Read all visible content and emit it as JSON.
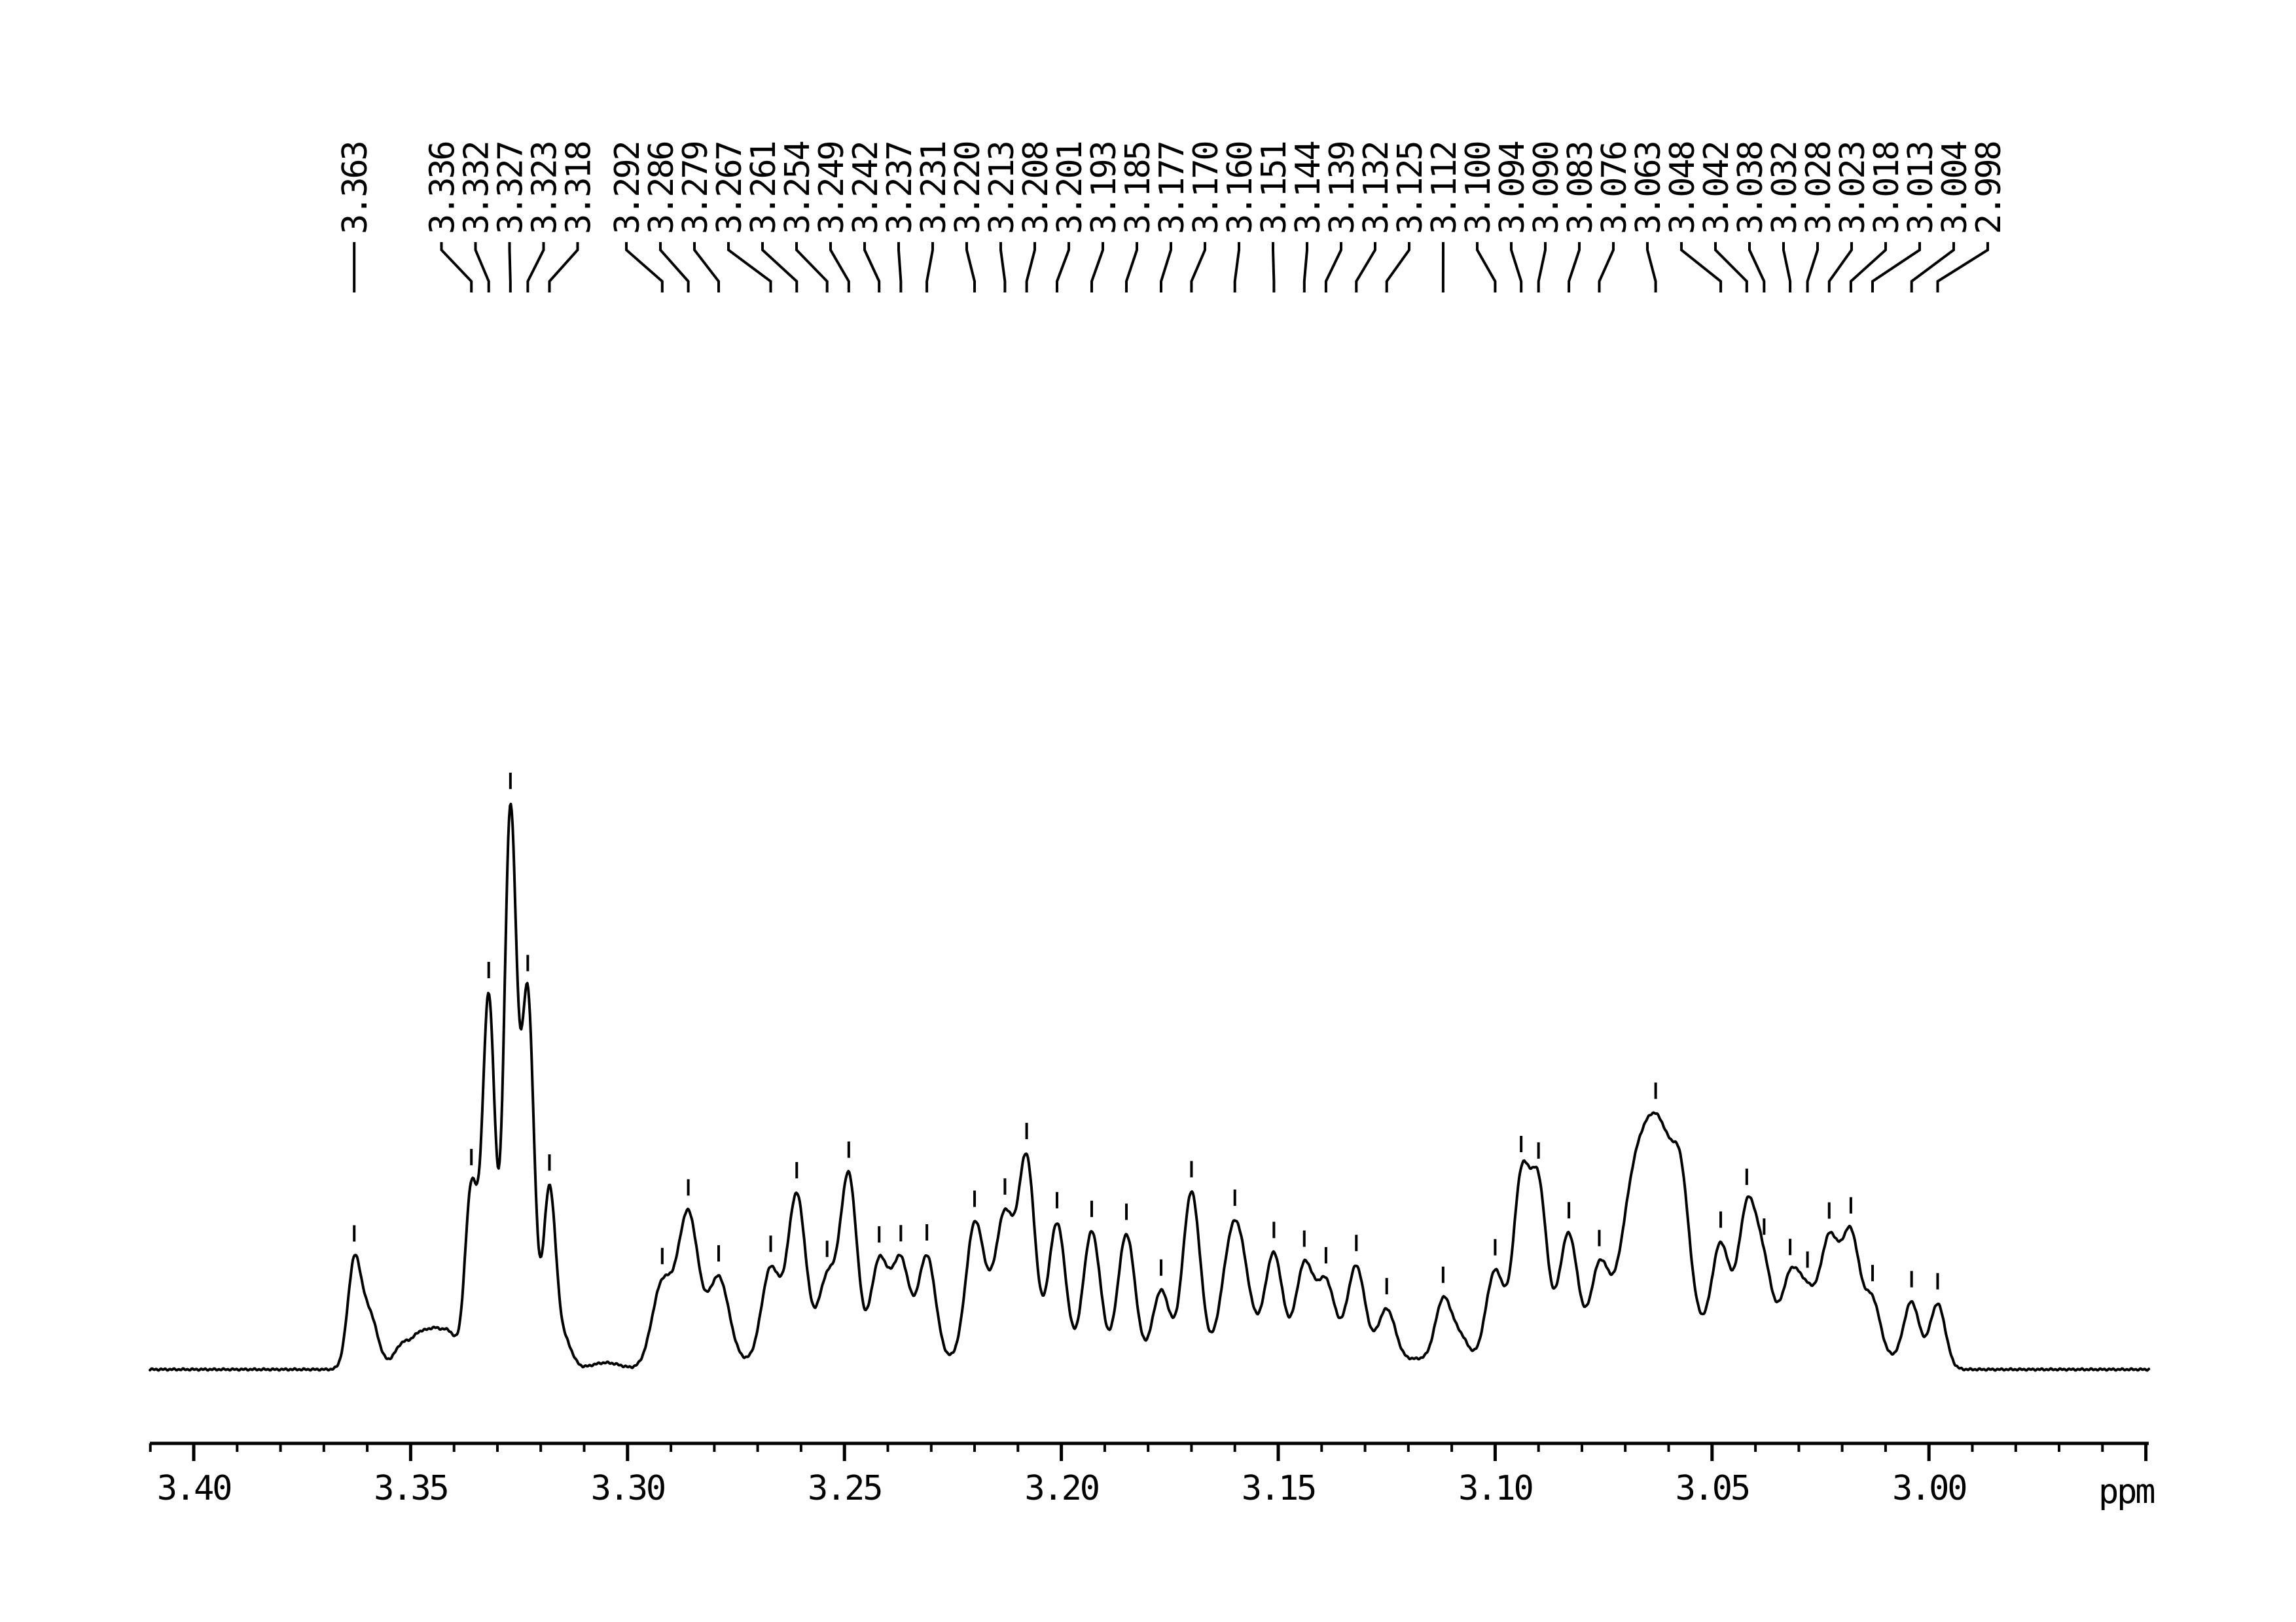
{
  "window": {
    "background_color": "#ffffff",
    "trace_color": "#000000"
  },
  "chart_data": {
    "type": "line",
    "xlabel": "ppm",
    "x_axis": {
      "unit_label": "ppm",
      "major_tick_labels": [
        "3.40",
        "3.35",
        "3.30",
        "3.25",
        "3.20",
        "3.15",
        "3.10",
        "3.05",
        "3.00"
      ],
      "major_tick_values": [
        3.4,
        3.35,
        3.3,
        3.25,
        3.2,
        3.15,
        3.1,
        3.05,
        3.0
      ],
      "minor_tick_step_ppm": 0.01,
      "range_ppm": [
        3.41,
        2.949
      ],
      "direction": "decreasing-to-right",
      "grid": false
    },
    "peak_labels": [
      "3.363",
      "3.336",
      "3.332",
      "3.327",
      "3.323",
      "3.318",
      "3.292",
      "3.286",
      "3.279",
      "3.267",
      "3.261",
      "3.254",
      "3.249",
      "3.242",
      "3.237",
      "3.231",
      "3.220",
      "3.213",
      "3.208",
      "3.201",
      "3.193",
      "3.185",
      "3.177",
      "3.170",
      "3.160",
      "3.151",
      "3.144",
      "3.139",
      "3.132",
      "3.125",
      "3.112",
      "3.100",
      "3.094",
      "3.090",
      "3.083",
      "3.076",
      "3.063",
      "3.048",
      "3.042",
      "3.038",
      "3.032",
      "3.028",
      "3.023",
      "3.018",
      "3.013",
      "3.004",
      "2.998"
    ],
    "series": [
      {
        "name": "nmr-trace",
        "model": "gaussian-sum",
        "max_relative_height": 1.0,
        "labeled_peaks": [
          {
            "label": "3.363",
            "ppm": 3.363,
            "height": 0.185,
            "hwhm_ppm": 0.0018
          },
          {
            "label": "3.336",
            "ppm": 3.336,
            "height": 0.32,
            "hwhm_ppm": 0.0017
          },
          {
            "label": "3.332",
            "ppm": 3.332,
            "height": 0.66,
            "hwhm_ppm": 0.0017
          },
          {
            "label": "3.327",
            "ppm": 3.327,
            "height": 0.99,
            "hwhm_ppm": 0.0017
          },
          {
            "label": "3.323",
            "ppm": 3.323,
            "height": 0.66,
            "hwhm_ppm": 0.0017
          },
          {
            "label": "3.318",
            "ppm": 3.318,
            "height": 0.32,
            "hwhm_ppm": 0.0017
          },
          {
            "label": "3.292",
            "ppm": 3.292,
            "height": 0.15,
            "hwhm_ppm": 0.0028
          },
          {
            "label": "3.286",
            "ppm": 3.286,
            "height": 0.275,
            "hwhm_ppm": 0.0028
          },
          {
            "label": "3.279",
            "ppm": 3.279,
            "height": 0.16,
            "hwhm_ppm": 0.0028
          },
          {
            "label": "3.267",
            "ppm": 3.267,
            "height": 0.175,
            "hwhm_ppm": 0.0025
          },
          {
            "label": "3.261",
            "ppm": 3.261,
            "height": 0.31,
            "hwhm_ppm": 0.0025
          },
          {
            "label": "3.254",
            "ppm": 3.254,
            "height": 0.16,
            "hwhm_ppm": 0.0025
          },
          {
            "label": "3.249",
            "ppm": 3.249,
            "height": 0.34,
            "hwhm_ppm": 0.0023
          },
          {
            "label": "3.242",
            "ppm": 3.242,
            "height": 0.19,
            "hwhm_ppm": 0.0024
          },
          {
            "label": "3.237",
            "ppm": 3.237,
            "height": 0.19,
            "hwhm_ppm": 0.0024
          },
          {
            "label": "3.231",
            "ppm": 3.231,
            "height": 0.2,
            "hwhm_ppm": 0.0024
          },
          {
            "label": "3.220",
            "ppm": 3.22,
            "height": 0.25,
            "hwhm_ppm": 0.0024
          },
          {
            "label": "3.213",
            "ppm": 3.213,
            "height": 0.26,
            "hwhm_ppm": 0.0024
          },
          {
            "label": "3.208",
            "ppm": 3.208,
            "height": 0.37,
            "hwhm_ppm": 0.0023
          },
          {
            "label": "3.201",
            "ppm": 3.201,
            "height": 0.26,
            "hwhm_ppm": 0.0024
          },
          {
            "label": "3.193",
            "ppm": 3.193,
            "height": 0.245,
            "hwhm_ppm": 0.0024
          },
          {
            "label": "3.185",
            "ppm": 3.185,
            "height": 0.24,
            "hwhm_ppm": 0.0024
          },
          {
            "label": "3.177",
            "ppm": 3.177,
            "height": 0.14,
            "hwhm_ppm": 0.0024
          },
          {
            "label": "3.170",
            "ppm": 3.17,
            "height": 0.315,
            "hwhm_ppm": 0.0024
          },
          {
            "label": "3.160",
            "ppm": 3.16,
            "height": 0.255,
            "hwhm_ppm": 0.0033
          },
          {
            "label": "3.151",
            "ppm": 3.151,
            "height": 0.19,
            "hwhm_ppm": 0.0024
          },
          {
            "label": "3.144",
            "ppm": 3.144,
            "height": 0.17,
            "hwhm_ppm": 0.0024
          },
          {
            "label": "3.139",
            "ppm": 3.139,
            "height": 0.13,
            "hwhm_ppm": 0.0024
          },
          {
            "label": "3.132",
            "ppm": 3.132,
            "height": 0.165,
            "hwhm_ppm": 0.0024
          },
          {
            "label": "3.125",
            "ppm": 3.125,
            "height": 0.1,
            "hwhm_ppm": 0.0024
          },
          {
            "label": "3.112",
            "ppm": 3.112,
            "height": 0.115,
            "hwhm_ppm": 0.0022
          },
          {
            "label": "3.100",
            "ppm": 3.1,
            "height": 0.175,
            "hwhm_ppm": 0.0026
          },
          {
            "label": "3.094",
            "ppm": 3.094,
            "height": 0.32,
            "hwhm_ppm": 0.0022
          },
          {
            "label": "3.090",
            "ppm": 3.09,
            "height": 0.29,
            "hwhm_ppm": 0.0022
          },
          {
            "label": "3.083",
            "ppm": 3.083,
            "height": 0.21,
            "hwhm_ppm": 0.0025
          },
          {
            "label": "3.076",
            "ppm": 3.076,
            "height": 0.16,
            "hwhm_ppm": 0.0025
          },
          {
            "label": "3.063",
            "ppm": 3.063,
            "height": 0.45,
            "hwhm_ppm": 0.0065
          },
          {
            "label": "3.048",
            "ppm": 3.048,
            "height": 0.21,
            "hwhm_ppm": 0.0025
          },
          {
            "label": "3.042",
            "ppm": 3.042,
            "height": 0.27,
            "hwhm_ppm": 0.0025
          },
          {
            "label": "3.038",
            "ppm": 3.038,
            "height": 0.165,
            "hwhm_ppm": 0.0025
          },
          {
            "label": "3.032",
            "ppm": 3.032,
            "height": 0.155,
            "hwhm_ppm": 0.0025
          },
          {
            "label": "3.028",
            "ppm": 3.028,
            "height": 0.115,
            "hwhm_ppm": 0.0025
          },
          {
            "label": "3.023",
            "ppm": 3.023,
            "height": 0.22,
            "hwhm_ppm": 0.0025
          },
          {
            "label": "3.018",
            "ppm": 3.018,
            "height": 0.23,
            "hwhm_ppm": 0.0025
          },
          {
            "label": "3.013",
            "ppm": 3.013,
            "height": 0.1,
            "hwhm_ppm": 0.0021
          },
          {
            "label": "3.004",
            "ppm": 3.004,
            "height": 0.11,
            "hwhm_ppm": 0.0021
          },
          {
            "label": "2.998",
            "ppm": 2.998,
            "height": 0.115,
            "hwhm_ppm": 0.0021
          }
        ],
        "unlabeled_components": [
          {
            "ppm": 3.3595,
            "height": 0.095,
            "hwhm_ppm": 0.0022
          },
          {
            "ppm": 3.352,
            "height": 0.03,
            "hwhm_ppm": 0.002
          },
          {
            "ppm": 3.348,
            "height": 0.036,
            "hwhm_ppm": 0.002
          },
          {
            "ppm": 3.347,
            "height": 0.025,
            "hwhm_ppm": 0.006
          },
          {
            "ppm": 3.3445,
            "height": 0.042,
            "hwhm_ppm": 0.002
          },
          {
            "ppm": 3.341,
            "height": 0.05,
            "hwhm_ppm": 0.002
          },
          {
            "ppm": 3.3145,
            "height": 0.05,
            "hwhm_ppm": 0.002
          },
          {
            "ppm": 3.305,
            "height": 0.012,
            "hwhm_ppm": 0.004
          },
          {
            "ppm": 3.273,
            "height": 0.012,
            "hwhm_ppm": 0.004
          },
          {
            "ppm": 3.225,
            "height": 0.015,
            "hwhm_ppm": 0.003
          },
          {
            "ppm": 3.2165,
            "height": 0.06,
            "hwhm_ppm": 0.0022
          },
          {
            "ppm": 3.155,
            "height": 0.02,
            "hwhm_ppm": 0.005
          },
          {
            "ppm": 3.137,
            "height": 0.025,
            "hwhm_ppm": 0.008
          },
          {
            "ppm": 3.118,
            "height": 0.018,
            "hwhm_ppm": 0.004
          },
          {
            "ppm": 3.108,
            "height": 0.055,
            "hwhm_ppm": 0.0025
          },
          {
            "ppm": 3.086,
            "height": 0.04,
            "hwhm_ppm": 0.005
          },
          {
            "ppm": 3.069,
            "height": 0.08,
            "hwhm_ppm": 0.003
          },
          {
            "ppm": 3.057,
            "height": 0.12,
            "hwhm_ppm": 0.002
          },
          {
            "ppm": 3.01,
            "height": 0.02,
            "hwhm_ppm": 0.006
          }
        ]
      }
    ]
  }
}
